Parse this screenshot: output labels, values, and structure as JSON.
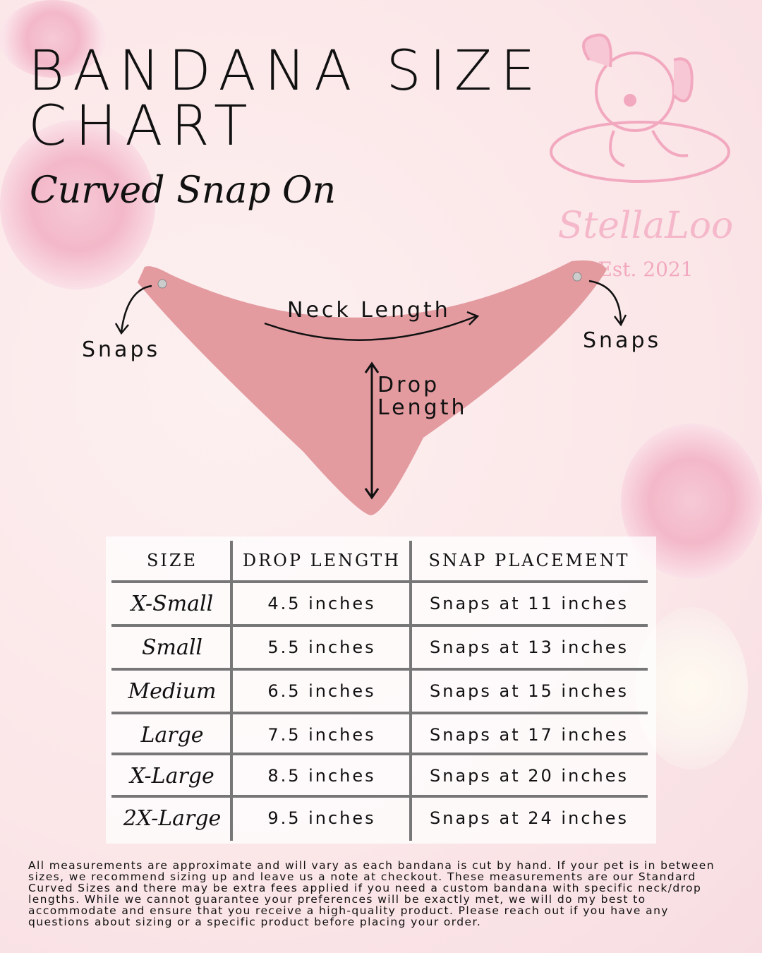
{
  "title": {
    "line1": "BANDANA SIZE",
    "line2": "CHART"
  },
  "subtitle": "Curved Snap On",
  "logo": {
    "name": "StellaLoo",
    "est": "Est. 2021"
  },
  "diagram": {
    "snaps_left": "Snaps",
    "snaps_right": "Snaps",
    "neck_length": "Neck Length",
    "drop_line1": "Drop",
    "drop_line2": "Length",
    "bandana_color": "#e39ba0"
  },
  "table": {
    "headers": [
      "SIZE",
      "DROP LENGTH",
      "SNAP PLACEMENT"
    ],
    "rows": [
      {
        "size": "X-Small",
        "drop": "4.5 inches",
        "snap": "Snaps at 11 inches"
      },
      {
        "size": "Small",
        "drop": "5.5 inches",
        "snap": "Snaps at 13 inches"
      },
      {
        "size": "Medium",
        "drop": "6.5 inches",
        "snap": "Snaps at 15 inches"
      },
      {
        "size": "Large",
        "drop": "7.5 inches",
        "snap": "Snaps at 17 inches"
      },
      {
        "size": "X-Large",
        "drop": "8.5 inches",
        "snap": "Snaps at 20 inches"
      },
      {
        "size": "2X-Large",
        "drop": "9.5 inches",
        "snap": "Snaps at 24 inches"
      }
    ]
  },
  "footer": "All measurements are approximate and will vary as each bandana is cut by hand. If your pet is in between sizes, we recommend sizing up and leave us a note at checkout. These measurements are our Standard Curved Sizes and there may be extra fees applied if you need a custom bandana with specific neck/drop lengths. While we cannot guarantee your preferences will be exactly met, we will do my best to accommodate and ensure that you receive a high-quality product. Please reach out if you have any questions about sizing or a specific product before placing your order."
}
